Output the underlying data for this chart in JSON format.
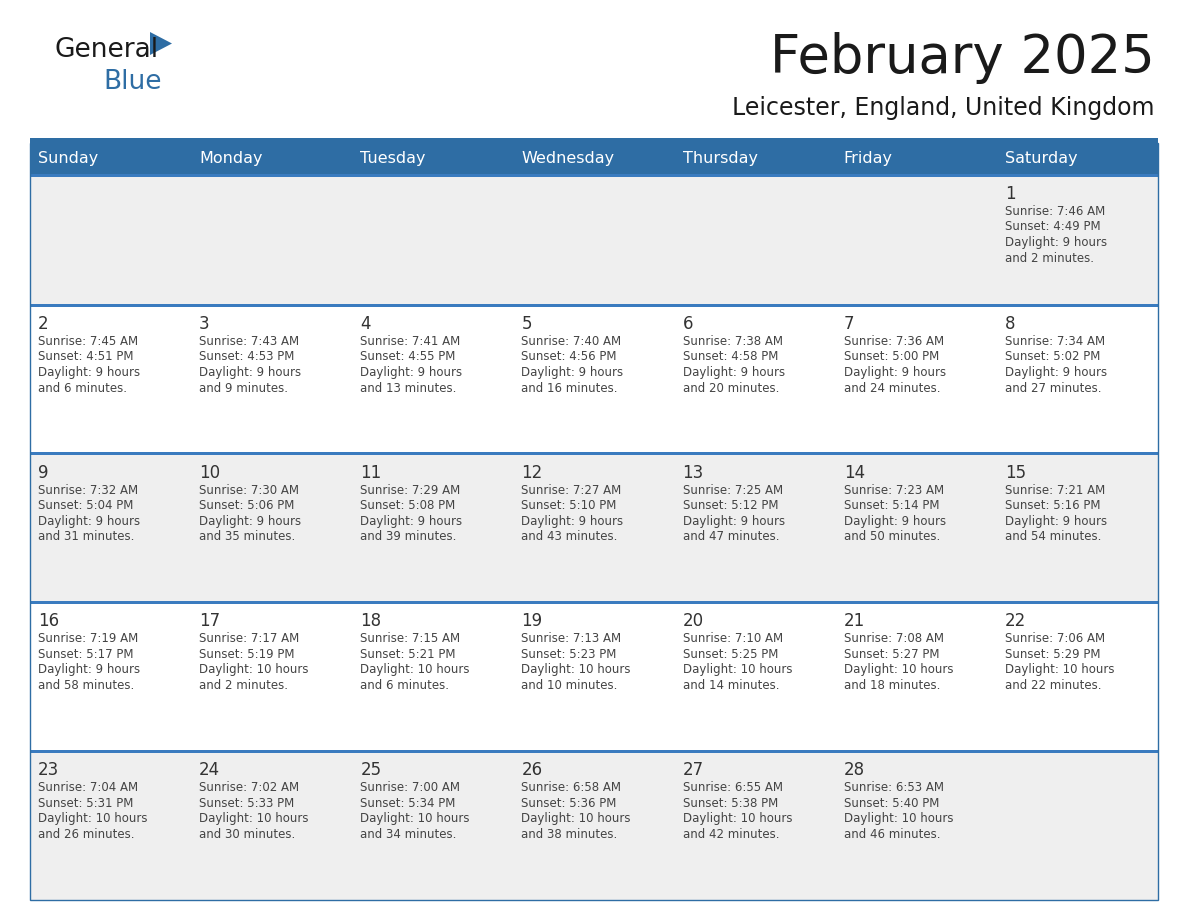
{
  "title": "February 2025",
  "subtitle": "Leicester, England, United Kingdom",
  "header_color": "#2E6DA4",
  "header_text_color": "#FFFFFF",
  "cell_bg_row0": "#EFEFEF",
  "cell_bg_row1": "#FFFFFF",
  "cell_bg_row2": "#EFEFEF",
  "cell_bg_row3": "#FFFFFF",
  "cell_bg_row4": "#EFEFEF",
  "text_color": "#444444",
  "day_number_color": "#333333",
  "line_color": "#3A7BBF",
  "logo_color": "#2E6DA4",
  "weekdays": [
    "Sunday",
    "Monday",
    "Tuesday",
    "Wednesday",
    "Thursday",
    "Friday",
    "Saturday"
  ],
  "weeks": [
    [
      {
        "day": "",
        "info": ""
      },
      {
        "day": "",
        "info": ""
      },
      {
        "day": "",
        "info": ""
      },
      {
        "day": "",
        "info": ""
      },
      {
        "day": "",
        "info": ""
      },
      {
        "day": "",
        "info": ""
      },
      {
        "day": "1",
        "info": "Sunrise: 7:46 AM\nSunset: 4:49 PM\nDaylight: 9 hours\nand 2 minutes."
      }
    ],
    [
      {
        "day": "2",
        "info": "Sunrise: 7:45 AM\nSunset: 4:51 PM\nDaylight: 9 hours\nand 6 minutes."
      },
      {
        "day": "3",
        "info": "Sunrise: 7:43 AM\nSunset: 4:53 PM\nDaylight: 9 hours\nand 9 minutes."
      },
      {
        "day": "4",
        "info": "Sunrise: 7:41 AM\nSunset: 4:55 PM\nDaylight: 9 hours\nand 13 minutes."
      },
      {
        "day": "5",
        "info": "Sunrise: 7:40 AM\nSunset: 4:56 PM\nDaylight: 9 hours\nand 16 minutes."
      },
      {
        "day": "6",
        "info": "Sunrise: 7:38 AM\nSunset: 4:58 PM\nDaylight: 9 hours\nand 20 minutes."
      },
      {
        "day": "7",
        "info": "Sunrise: 7:36 AM\nSunset: 5:00 PM\nDaylight: 9 hours\nand 24 minutes."
      },
      {
        "day": "8",
        "info": "Sunrise: 7:34 AM\nSunset: 5:02 PM\nDaylight: 9 hours\nand 27 minutes."
      }
    ],
    [
      {
        "day": "9",
        "info": "Sunrise: 7:32 AM\nSunset: 5:04 PM\nDaylight: 9 hours\nand 31 minutes."
      },
      {
        "day": "10",
        "info": "Sunrise: 7:30 AM\nSunset: 5:06 PM\nDaylight: 9 hours\nand 35 minutes."
      },
      {
        "day": "11",
        "info": "Sunrise: 7:29 AM\nSunset: 5:08 PM\nDaylight: 9 hours\nand 39 minutes."
      },
      {
        "day": "12",
        "info": "Sunrise: 7:27 AM\nSunset: 5:10 PM\nDaylight: 9 hours\nand 43 minutes."
      },
      {
        "day": "13",
        "info": "Sunrise: 7:25 AM\nSunset: 5:12 PM\nDaylight: 9 hours\nand 47 minutes."
      },
      {
        "day": "14",
        "info": "Sunrise: 7:23 AM\nSunset: 5:14 PM\nDaylight: 9 hours\nand 50 minutes."
      },
      {
        "day": "15",
        "info": "Sunrise: 7:21 AM\nSunset: 5:16 PM\nDaylight: 9 hours\nand 54 minutes."
      }
    ],
    [
      {
        "day": "16",
        "info": "Sunrise: 7:19 AM\nSunset: 5:17 PM\nDaylight: 9 hours\nand 58 minutes."
      },
      {
        "day": "17",
        "info": "Sunrise: 7:17 AM\nSunset: 5:19 PM\nDaylight: 10 hours\nand 2 minutes."
      },
      {
        "day": "18",
        "info": "Sunrise: 7:15 AM\nSunset: 5:21 PM\nDaylight: 10 hours\nand 6 minutes."
      },
      {
        "day": "19",
        "info": "Sunrise: 7:13 AM\nSunset: 5:23 PM\nDaylight: 10 hours\nand 10 minutes."
      },
      {
        "day": "20",
        "info": "Sunrise: 7:10 AM\nSunset: 5:25 PM\nDaylight: 10 hours\nand 14 minutes."
      },
      {
        "day": "21",
        "info": "Sunrise: 7:08 AM\nSunset: 5:27 PM\nDaylight: 10 hours\nand 18 minutes."
      },
      {
        "day": "22",
        "info": "Sunrise: 7:06 AM\nSunset: 5:29 PM\nDaylight: 10 hours\nand 22 minutes."
      }
    ],
    [
      {
        "day": "23",
        "info": "Sunrise: 7:04 AM\nSunset: 5:31 PM\nDaylight: 10 hours\nand 26 minutes."
      },
      {
        "day": "24",
        "info": "Sunrise: 7:02 AM\nSunset: 5:33 PM\nDaylight: 10 hours\nand 30 minutes."
      },
      {
        "day": "25",
        "info": "Sunrise: 7:00 AM\nSunset: 5:34 PM\nDaylight: 10 hours\nand 34 minutes."
      },
      {
        "day": "26",
        "info": "Sunrise: 6:58 AM\nSunset: 5:36 PM\nDaylight: 10 hours\nand 38 minutes."
      },
      {
        "day": "27",
        "info": "Sunrise: 6:55 AM\nSunset: 5:38 PM\nDaylight: 10 hours\nand 42 minutes."
      },
      {
        "day": "28",
        "info": "Sunrise: 6:53 AM\nSunset: 5:40 PM\nDaylight: 10 hours\nand 46 minutes."
      },
      {
        "day": "",
        "info": ""
      }
    ]
  ],
  "row_bg_colors": [
    "#EFEFEF",
    "#FFFFFF",
    "#EFEFEF",
    "#FFFFFF",
    "#EFEFEF"
  ]
}
